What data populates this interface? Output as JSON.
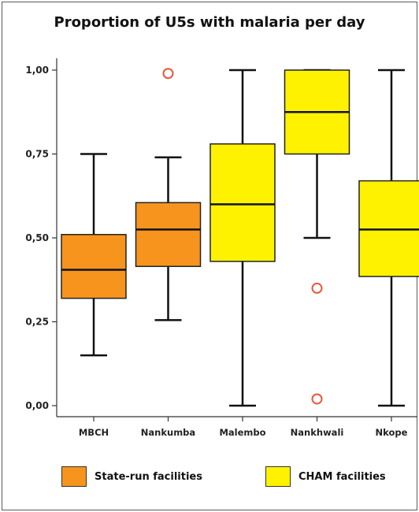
{
  "chart_data": {
    "type": "boxplot",
    "title": "Proportion of U5s with malaria per day",
    "xlabel": "",
    "ylabel": "",
    "ylim": [
      0,
      1
    ],
    "yticks": [
      "0,00",
      "0,25",
      "0,50",
      "0,75",
      "1,00"
    ],
    "ytick_values": [
      0,
      0.25,
      0.5,
      0.75,
      1
    ],
    "categories": [
      "MBCH",
      "Nankumba",
      "Malembo",
      "Nankhwali",
      "Nkope"
    ],
    "boxes": [
      {
        "category": "MBCH",
        "group": "State-run facilities",
        "whisker_low": 0.15,
        "q1": 0.32,
        "median": 0.405,
        "q3": 0.51,
        "whisker_high": 0.75,
        "outliers": []
      },
      {
        "category": "Nankumba",
        "group": "State-run facilities",
        "whisker_low": 0.255,
        "q1": 0.415,
        "median": 0.525,
        "q3": 0.605,
        "whisker_high": 0.74,
        "outliers": [
          0.99
        ]
      },
      {
        "category": "Malembo",
        "group": "CHAM facilities",
        "whisker_low": 0.0,
        "q1": 0.43,
        "median": 0.6,
        "q3": 0.78,
        "whisker_high": 1.0,
        "outliers": []
      },
      {
        "category": "Nankhwali",
        "group": "CHAM facilities",
        "whisker_low": 0.5,
        "q1": 0.75,
        "median": 0.875,
        "q3": 1.0,
        "whisker_high": 1.0,
        "outliers": [
          0.35,
          0.02
        ]
      },
      {
        "category": "Nkope",
        "group": "CHAM facilities",
        "whisker_low": 0.0,
        "q1": 0.385,
        "median": 0.525,
        "q3": 0.67,
        "whisker_high": 1.0,
        "outliers": []
      }
    ],
    "legend": {
      "placement": "bottom",
      "items": [
        {
          "label": "State-run facilities",
          "color": "#F7941D"
        },
        {
          "label": "CHAM facilities",
          "color": "#FFF200"
        }
      ]
    },
    "colors": {
      "State-run facilities": "#F7941D",
      "CHAM facilities": "#FFF200",
      "outlier": "#E8573A"
    },
    "grid": false
  }
}
